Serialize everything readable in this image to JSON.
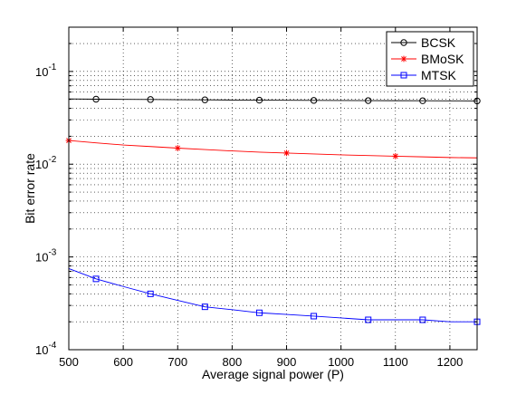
{
  "chart_data": {
    "type": "line",
    "xlabel": "Average signal power (P)",
    "ylabel": "Bit error rate",
    "x_scale": "linear",
    "y_scale": "log",
    "xlim": [
      500,
      1250
    ],
    "ylim": [
      0.0001,
      0.3
    ],
    "x_ticks": [
      500,
      600,
      700,
      800,
      900,
      1000,
      1100,
      1200
    ],
    "y_ticks": [
      {
        "value": 0.0001,
        "base": "10",
        "exp": "-4"
      },
      {
        "value": 0.001,
        "base": "10",
        "exp": "-3"
      },
      {
        "value": 0.01,
        "base": "10",
        "exp": "-2"
      },
      {
        "value": 0.1,
        "base": "10",
        "exp": "-1"
      }
    ],
    "grid": true,
    "legend_position": "top-right",
    "x": [
      500,
      550,
      600,
      650,
      700,
      750,
      800,
      850,
      900,
      950,
      1000,
      1050,
      1100,
      1150,
      1200,
      1250
    ],
    "series": [
      {
        "name": "BCSK",
        "color": "#000000",
        "marker": "circle",
        "values": [
          0.0505,
          0.0502,
          0.05,
          0.0498,
          0.0496,
          0.0494,
          0.0492,
          0.049,
          0.0489,
          0.0487,
          0.0486,
          0.0485,
          0.0484,
          0.0483,
          0.0482,
          0.0481
        ],
        "marker_x": [
          550,
          650,
          750,
          850,
          950,
          1050,
          1150,
          1250
        ]
      },
      {
        "name": "BMoSK",
        "color": "#ff0000",
        "marker": "star",
        "values": [
          0.018,
          0.017,
          0.0161,
          0.0155,
          0.0149,
          0.0144,
          0.0139,
          0.0135,
          0.0132,
          0.0129,
          0.0126,
          0.0124,
          0.0122,
          0.012,
          0.0118,
          0.0117
        ],
        "marker_x": [
          500,
          700,
          900,
          1100
        ]
      },
      {
        "name": "MTSK",
        "color": "#0000ff",
        "marker": "square",
        "values": [
          0.00075,
          0.00058,
          0.00048,
          0.0004,
          0.00034,
          0.00029,
          0.00027,
          0.00025,
          0.00024,
          0.00023,
          0.00022,
          0.00021,
          0.00021,
          0.00021,
          0.0002,
          0.0002
        ],
        "marker_x": [
          550,
          650,
          750,
          850,
          950,
          1050,
          1150,
          1250
        ]
      }
    ]
  }
}
